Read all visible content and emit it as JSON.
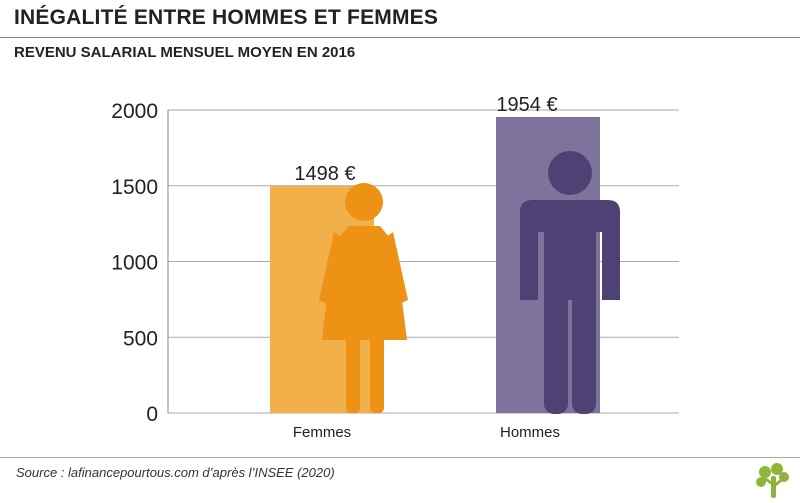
{
  "header": {
    "title": "INÉGALITÉ ENTRE HOMMES ET FEMMES",
    "subtitle": "REVENU SALARIAL MENSUEL MOYEN EN 2016"
  },
  "footer": {
    "source": "Source : lafinancepourtous.com d’après l’INSEE (2020)"
  },
  "colors": {
    "femmes_bar": "#F2B04A",
    "femmes_figure": "#EE9215",
    "hommes_bar": "#7E739C",
    "hommes_figure": "#4E4275",
    "grid": "#aaaaaa",
    "logo": "#8DB53A"
  },
  "chart_data": {
    "type": "bar",
    "categories": [
      "Femmes",
      "Hommes"
    ],
    "values": [
      1498,
      1954
    ],
    "data_labels": [
      "1498 €",
      "1954 €"
    ],
    "ylim": [
      0,
      2000
    ],
    "yticks": [
      0,
      500,
      1000,
      1500,
      2000
    ],
    "grid": true,
    "icons": [
      "woman-icon",
      "man-icon"
    ]
  }
}
